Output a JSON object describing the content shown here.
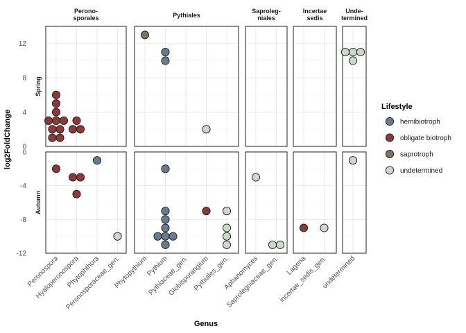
{
  "chart_data": {
    "type": "scatter",
    "xlabel": "Genus",
    "ylabel": "log2FoldChange",
    "legend_title": "Lifestyle",
    "legend_position": "right",
    "grid": true,
    "colors": {
      "hemibiotroph": "#6b7b8f",
      "obligate biotroph": "#8b3a3a",
      "saprotroph": "#7d7263",
      "undetermined": "#ccd8cc"
    },
    "legend": [
      "hemibiotroph",
      "obligate biotroph",
      "saprotroph",
      "undetermined"
    ],
    "columns": [
      {
        "label_lines": [
          "Perono-",
          "sporales"
        ],
        "genera": [
          "Peronospora",
          "Hyaloperonospora",
          "Phytophthora",
          "Peronosporaceae_gen."
        ]
      },
      {
        "label_lines": [
          "Pythiales"
        ],
        "genera": [
          "Phytopythium",
          "Pythium",
          "Pythiaceae_gen.",
          "Globisporangium",
          "Pythiales_gen."
        ]
      },
      {
        "label_lines": [
          "Saproleg-",
          "niales"
        ],
        "genera": [
          "Aphanomyces",
          "Saprolegniaceae_gen."
        ]
      },
      {
        "label_lines": [
          "Incertae",
          "sedis"
        ],
        "genera": [
          "Lagena",
          "incertae_sedis_gen."
        ]
      },
      {
        "label_lines": [
          "Unde-",
          "termined"
        ],
        "genera": [
          "undetermined"
        ]
      }
    ],
    "rows": [
      {
        "label": "Spring",
        "ylim": [
          0,
          14
        ],
        "ticks": [
          0,
          4,
          8,
          12
        ]
      },
      {
        "label": "Autumn",
        "ylim": [
          -12,
          0
        ],
        "ticks": [
          -12,
          -8,
          -4,
          0
        ]
      }
    ],
    "points": [
      {
        "row": "Spring",
        "genus": "Peronospora",
        "y": 6,
        "lifestyle": "obligate biotroph"
      },
      {
        "row": "Spring",
        "genus": "Peronospora",
        "y": 5,
        "lifestyle": "obligate biotroph"
      },
      {
        "row": "Spring",
        "genus": "Peronospora",
        "y": 4,
        "lifestyle": "obligate biotroph"
      },
      {
        "row": "Spring",
        "genus": "Peronospora",
        "y": 3,
        "lifestyle": "obligate biotroph"
      },
      {
        "row": "Spring",
        "genus": "Peronospora",
        "y": 3,
        "lifestyle": "obligate biotroph"
      },
      {
        "row": "Spring",
        "genus": "Peronospora",
        "y": 3,
        "lifestyle": "obligate biotroph"
      },
      {
        "row": "Spring",
        "genus": "Peronospora",
        "y": 2,
        "lifestyle": "obligate biotroph"
      },
      {
        "row": "Spring",
        "genus": "Peronospora",
        "y": 2,
        "lifestyle": "obligate biotroph"
      },
      {
        "row": "Spring",
        "genus": "Peronospora",
        "y": 1,
        "lifestyle": "obligate biotroph"
      },
      {
        "row": "Spring",
        "genus": "Peronospora",
        "y": 1,
        "lifestyle": "obligate biotroph"
      },
      {
        "row": "Spring",
        "genus": "Hyaloperonospora",
        "y": 3,
        "lifestyle": "obligate biotroph"
      },
      {
        "row": "Spring",
        "genus": "Hyaloperonospora",
        "y": 2,
        "lifestyle": "obligate biotroph"
      },
      {
        "row": "Spring",
        "genus": "Hyaloperonospora",
        "y": 2,
        "lifestyle": "obligate biotroph"
      },
      {
        "row": "Spring",
        "genus": "Phytopythium",
        "y": 13,
        "lifestyle": "saprotroph"
      },
      {
        "row": "Spring",
        "genus": "Pythium",
        "y": 11,
        "lifestyle": "hemibiotroph"
      },
      {
        "row": "Spring",
        "genus": "Pythium",
        "y": 10,
        "lifestyle": "hemibiotroph"
      },
      {
        "row": "Spring",
        "genus": "Globisporangium",
        "y": 2,
        "lifestyle": "undetermined"
      },
      {
        "row": "Spring",
        "genus": "undetermined",
        "y": 11,
        "lifestyle": "undetermined"
      },
      {
        "row": "Spring",
        "genus": "undetermined",
        "y": 11,
        "lifestyle": "undetermined"
      },
      {
        "row": "Spring",
        "genus": "undetermined",
        "y": 11,
        "lifestyle": "undetermined"
      },
      {
        "row": "Spring",
        "genus": "undetermined",
        "y": 10,
        "lifestyle": "undetermined"
      },
      {
        "row": "Autumn",
        "genus": "Peronospora",
        "y": -2,
        "lifestyle": "obligate biotroph"
      },
      {
        "row": "Autumn",
        "genus": "Hyaloperonospora",
        "y": -3,
        "lifestyle": "obligate biotroph"
      },
      {
        "row": "Autumn",
        "genus": "Hyaloperonospora",
        "y": -3,
        "lifestyle": "obligate biotroph"
      },
      {
        "row": "Autumn",
        "genus": "Hyaloperonospora",
        "y": -5,
        "lifestyle": "obligate biotroph"
      },
      {
        "row": "Autumn",
        "genus": "Phytophthora",
        "y": -1,
        "lifestyle": "hemibiotroph"
      },
      {
        "row": "Autumn",
        "genus": "Peronosporaceae_gen.",
        "y": -10,
        "lifestyle": "undetermined"
      },
      {
        "row": "Autumn",
        "genus": "Pythium",
        "y": -2,
        "lifestyle": "hemibiotroph"
      },
      {
        "row": "Autumn",
        "genus": "Pythium",
        "y": -7,
        "lifestyle": "hemibiotroph"
      },
      {
        "row": "Autumn",
        "genus": "Pythium",
        "y": -8,
        "lifestyle": "hemibiotroph"
      },
      {
        "row": "Autumn",
        "genus": "Pythium",
        "y": -9,
        "lifestyle": "hemibiotroph"
      },
      {
        "row": "Autumn",
        "genus": "Pythium",
        "y": -10,
        "lifestyle": "hemibiotroph"
      },
      {
        "row": "Autumn",
        "genus": "Pythium",
        "y": -10,
        "lifestyle": "hemibiotroph"
      },
      {
        "row": "Autumn",
        "genus": "Pythium",
        "y": -10,
        "lifestyle": "hemibiotroph"
      },
      {
        "row": "Autumn",
        "genus": "Pythium",
        "y": -11,
        "lifestyle": "hemibiotroph"
      },
      {
        "row": "Autumn",
        "genus": "Globisporangium",
        "y": -7,
        "lifestyle": "obligate biotroph"
      },
      {
        "row": "Autumn",
        "genus": "Pythiales_gen.",
        "y": -7,
        "lifestyle": "undetermined"
      },
      {
        "row": "Autumn",
        "genus": "Pythiales_gen.",
        "y": -9,
        "lifestyle": "undetermined"
      },
      {
        "row": "Autumn",
        "genus": "Pythiales_gen.",
        "y": -10,
        "lifestyle": "undetermined"
      },
      {
        "row": "Autumn",
        "genus": "Pythiales_gen.",
        "y": -11,
        "lifestyle": "undetermined"
      },
      {
        "row": "Autumn",
        "genus": "Aphanomyces",
        "y": -3,
        "lifestyle": "undetermined"
      },
      {
        "row": "Autumn",
        "genus": "Saprolegniaceae_gen.",
        "y": -11,
        "lifestyle": "undetermined"
      },
      {
        "row": "Autumn",
        "genus": "Saprolegniaceae_gen.",
        "y": -11,
        "lifestyle": "undetermined"
      },
      {
        "row": "Autumn",
        "genus": "Lagena",
        "y": -9,
        "lifestyle": "obligate biotroph"
      },
      {
        "row": "Autumn",
        "genus": "incertae_sedis_gen.",
        "y": -9,
        "lifestyle": "undetermined"
      },
      {
        "row": "Autumn",
        "genus": "undetermined",
        "y": -1,
        "lifestyle": "undetermined"
      }
    ]
  }
}
